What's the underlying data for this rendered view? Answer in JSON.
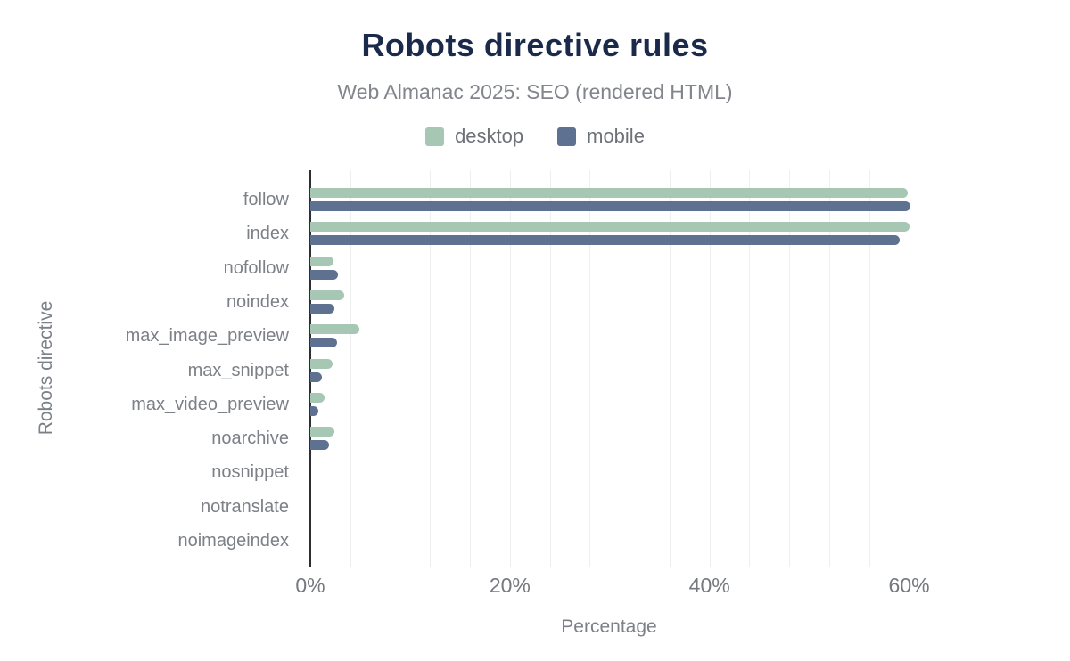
{
  "header": {
    "title": "Robots directive rules",
    "subtitle": "Web Almanac 2025: SEO (rendered HTML)"
  },
  "colors": {
    "title_text": "#1b2a4a",
    "muted_text": "#7c8087",
    "axis_line": "#2d2d32",
    "gridline": "#efefef",
    "desktop": "#a6c7b3",
    "mobile": "#5f7190"
  },
  "chart_data": {
    "type": "bar",
    "orientation": "horizontal",
    "title": "Robots directive rules",
    "subtitle": "Web Almanac 2025: SEO (rendered HTML)",
    "xlabel": "Percentage",
    "ylabel": "Robots directive",
    "categories": [
      "follow",
      "index",
      "nofollow",
      "noindex",
      "max_image_preview",
      "max_snippet",
      "max_video_preview",
      "noarchive",
      "nosnippet",
      "notranslate",
      "noimageindex"
    ],
    "series": [
      {
        "name": "desktop",
        "color": "#a6c7b3",
        "values": [
          59.9,
          60.0,
          2.3,
          3.4,
          4.9,
          2.2,
          1.4,
          2.4,
          0,
          0,
          0
        ]
      },
      {
        "name": "mobile",
        "color": "#5f7190",
        "values": [
          60.1,
          59.1,
          2.8,
          2.4,
          2.7,
          1.2,
          0.8,
          1.9,
          0,
          0,
          0
        ]
      }
    ],
    "xlim": [
      0,
      65.4
    ],
    "xticks": [
      0,
      20,
      40,
      60
    ],
    "xtick_labels": [
      "0%",
      "20%",
      "40%",
      "60%"
    ],
    "grid": {
      "show": true,
      "minor_step_percent": 4,
      "axis": "x"
    },
    "legend_position": "top-center",
    "bar_caps": "rounded-right"
  }
}
